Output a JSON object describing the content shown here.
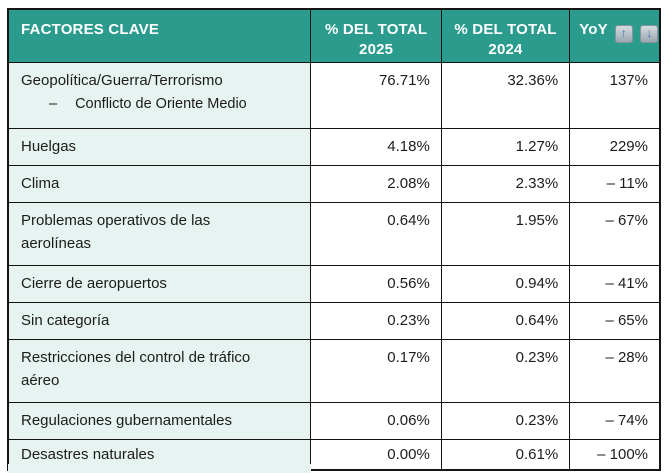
{
  "colors": {
    "header_bg": "#2a9b8d",
    "header_text": "#ffffff",
    "factor_col_bg": "#e7f3f1",
    "row_bg": "#ffffff",
    "border": "#141414",
    "text": "#1c1c1c",
    "arrow_blue": "#3f6db8",
    "arrow_chip_top": "#d6dce1",
    "arrow_chip_bottom": "#9aa6b0"
  },
  "table": {
    "header": {
      "factor": "FACTORES CLAVE",
      "total_2025_line1": "% DEL TOTAL",
      "total_2025_line2": "2025",
      "total_2024_line1": "% DEL TOTAL",
      "total_2024_line2": "2024",
      "yoy_label": "YoY",
      "yoy_up_glyph": "↑",
      "yoy_down_glyph": "↓"
    },
    "rows": [
      {
        "factor": "Geopolítica/Guerra/Terrorismo",
        "sub_bullet": "–",
        "sub": "Conflicto de Oriente Medio",
        "pct_2025": "76.71%",
        "pct_2024": "32.36%",
        "yoy": "137%"
      },
      {
        "factor": "Huelgas",
        "pct_2025": "4.18%",
        "pct_2024": "1.27%",
        "yoy": "229%"
      },
      {
        "factor": "Clima",
        "pct_2025": "2.08%",
        "pct_2024": "2.33%",
        "yoy": "– 11%"
      },
      {
        "factor": "Problemas operativos de las\naerolíneas",
        "pct_2025": "0.64%",
        "pct_2024": "1.95%",
        "yoy": "– 67%"
      },
      {
        "factor": "Cierre de aeropuertos",
        "pct_2025": "0.56%",
        "pct_2024": "0.94%",
        "yoy": "– 41%"
      },
      {
        "factor": "Sin categoría",
        "pct_2025": "0.23%",
        "pct_2024": "0.64%",
        "yoy": "– 65%"
      },
      {
        "factor": "Restricciones del control de tráfico\naéreo",
        "pct_2025": "0.17%",
        "pct_2024": "0.23%",
        "yoy": "– 28%"
      },
      {
        "factor": "Regulaciones gubernamentales",
        "pct_2025": "0.06%",
        "pct_2024": "0.23%",
        "yoy": "– 74%"
      },
      {
        "factor": "Desastres naturales",
        "pct_2025": "0.00%",
        "pct_2024": "0.61%",
        "yoy": "– 100%"
      }
    ]
  }
}
